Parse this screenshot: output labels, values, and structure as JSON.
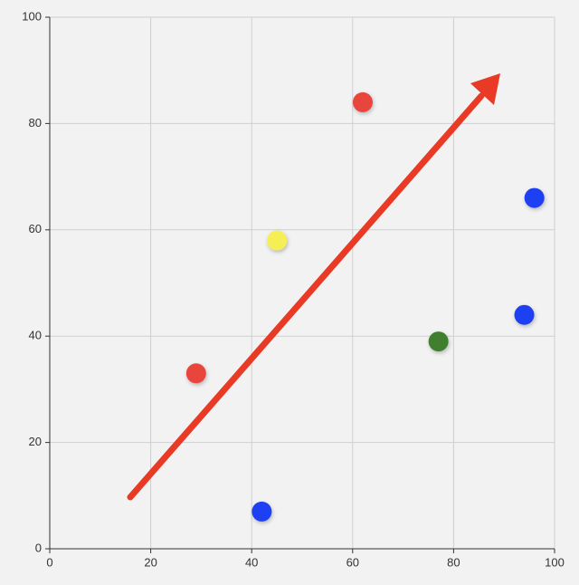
{
  "chart_data": {
    "type": "scatter",
    "x": [
      29,
      42,
      45,
      62,
      77,
      94,
      96
    ],
    "values": [
      33,
      7,
      58,
      84,
      39,
      44,
      66
    ],
    "colors": [
      "#e8453c",
      "#1f3ff2",
      "#f5ee55",
      "#e8453c",
      "#3f7f2e",
      "#1f3ff2",
      "#1f3ff2"
    ],
    "xlim": [
      0,
      100
    ],
    "ylim": [
      0,
      100
    ],
    "xticks": [
      0,
      20,
      40,
      60,
      80,
      100
    ],
    "yticks": [
      0,
      20,
      40,
      60,
      80,
      100
    ],
    "grid": true
  }
}
